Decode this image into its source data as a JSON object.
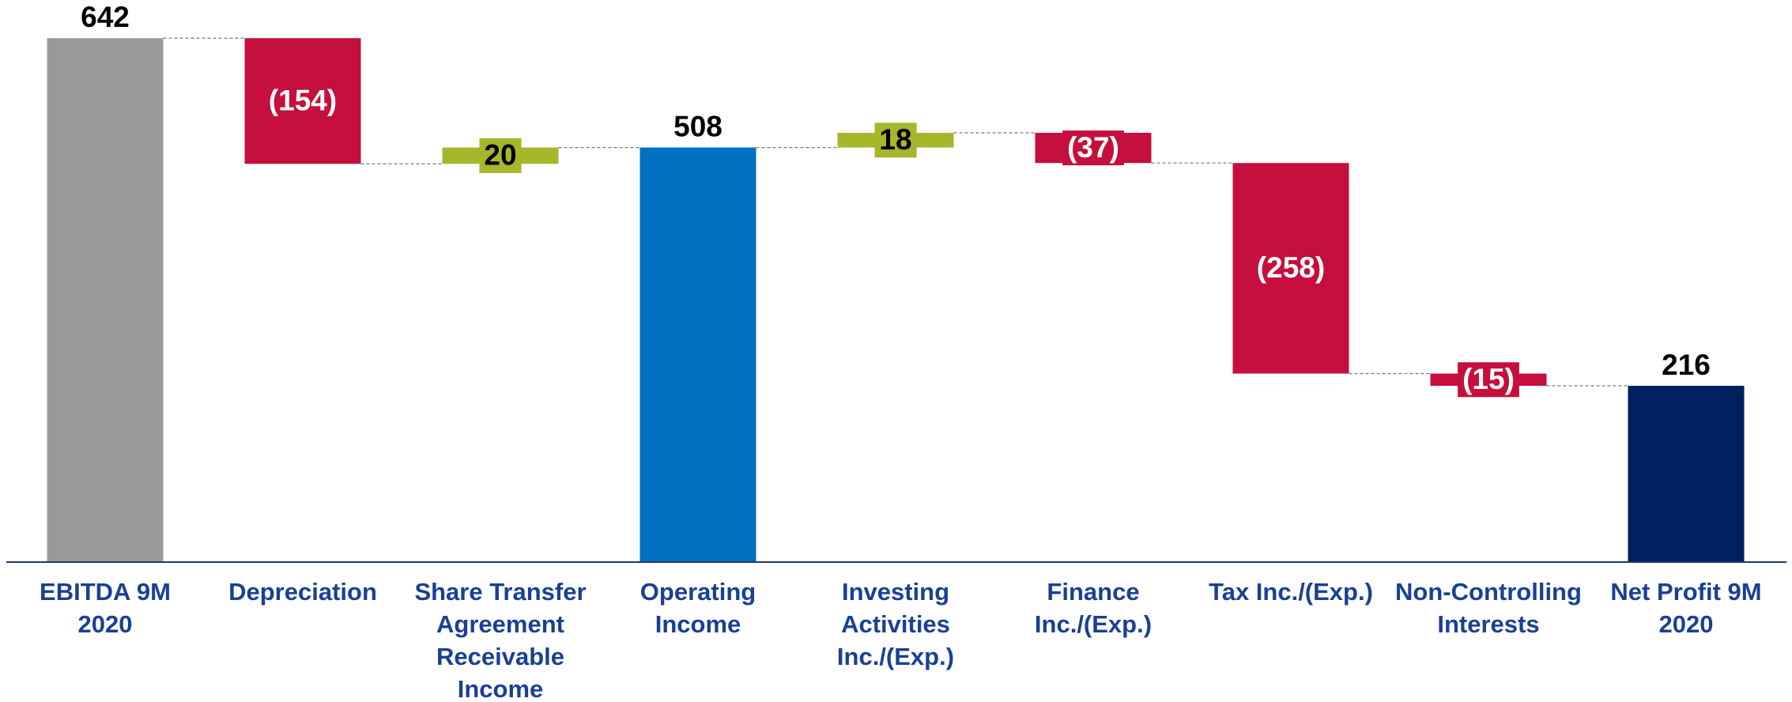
{
  "chart_data": {
    "type": "waterfall",
    "categories": [
      "EBITDA 9M 2020",
      "Depreciation",
      "Share Transfer Agreement Receivable Income",
      "Operating Income",
      "Investing Activities Inc./(Exp.)",
      "Finance Inc./(Exp.)",
      "Tax Inc./(Exp.)",
      "Non-Controlling Interests",
      "Net Profit 9M 2020"
    ],
    "values": [
      642,
      -154,
      20,
      508,
      18,
      -37,
      -258,
      -15,
      216
    ],
    "value_labels": [
      "642",
      "(154)",
      "20",
      "508",
      "18",
      "(37)",
      "(258)",
      "(15)",
      "216"
    ],
    "measure": [
      "absolute",
      "relative",
      "relative",
      "absolute",
      "relative",
      "relative",
      "relative",
      "relative",
      "absolute"
    ],
    "colors": [
      "#999999",
      "#c50f3c",
      "#a6b72b",
      "#0070c0",
      "#a6b72b",
      "#c50f3c",
      "#c50f3c",
      "#c50f3c",
      "#002060"
    ],
    "ylim": [
      0,
      650
    ]
  }
}
